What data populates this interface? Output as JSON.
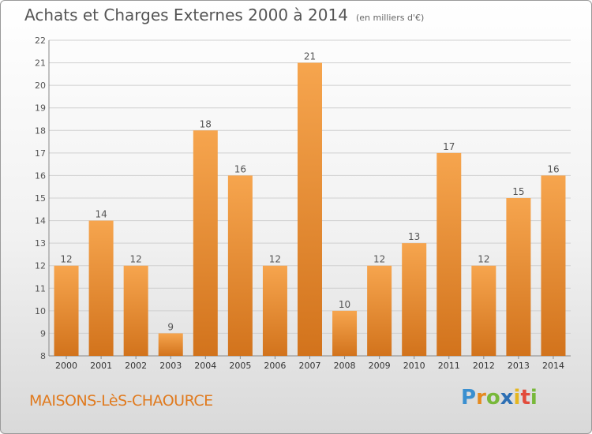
{
  "title": "Achats et Charges Externes 2000 à 2014",
  "unit": "(en milliers d'€)",
  "place": "MAISONS-LèS-CHAOURCE",
  "logo": {
    "text": "Proxiti",
    "letters": [
      {
        "ch": "P",
        "color": "#3a8fd0"
      },
      {
        "ch": "r",
        "color": "#e58a1f"
      },
      {
        "ch": "o",
        "color": "#78b83a"
      },
      {
        "ch": "x",
        "color": "#2d6fb4"
      },
      {
        "ch": "i",
        "color": "#e5b61f"
      },
      {
        "ch": "t",
        "color": "#e24b3b"
      },
      {
        "ch": "i",
        "color": "#78b83a"
      }
    ]
  },
  "colors": {
    "bar_top": "#f6a54e",
    "bar_bottom": "#d2731c",
    "grid": "#d0d0d0",
    "text": "#555555"
  },
  "chart_data": {
    "type": "bar",
    "title": "Achats et Charges Externes 2000 à 2014",
    "subtitle": "(en milliers d'€)",
    "categories": [
      "2000",
      "2001",
      "2002",
      "2003",
      "2004",
      "2005",
      "2006",
      "2007",
      "2008",
      "2009",
      "2010",
      "2011",
      "2012",
      "2013",
      "2014"
    ],
    "values": [
      12,
      14,
      12,
      9,
      18,
      16,
      12,
      21,
      10,
      12,
      13,
      17,
      12,
      15,
      16
    ],
    "ylim": [
      8,
      22
    ],
    "yticks": [
      8,
      9,
      10,
      11,
      12,
      13,
      14,
      15,
      16,
      17,
      18,
      19,
      20,
      21,
      22
    ],
    "grid": true,
    "xlabel": "",
    "ylabel": ""
  }
}
